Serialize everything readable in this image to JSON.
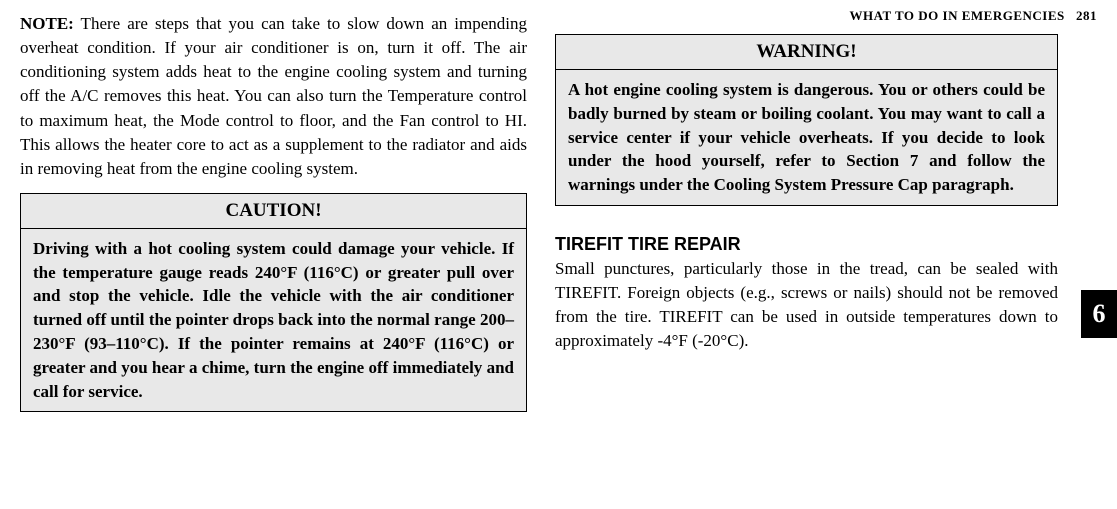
{
  "header": {
    "section_title": "WHAT TO DO IN EMERGENCIES",
    "page_number": "281"
  },
  "side_tab": "6",
  "left": {
    "note_label": "NOTE:",
    "note_text": "   There are steps that you can take to slow down an impending overheat condition. If your air conditioner is on, turn it off. The air conditioning system adds heat to the engine cooling system and turning off the A/C removes this heat. You can also turn the Temperature control to maximum heat, the Mode control to floor, and the Fan control to HI. This allows the heater core to act as a supplement to the radiator and aids in removing heat from the engine cooling system.",
    "caution": {
      "title": "CAUTION!",
      "body": "Driving with a hot cooling system could damage your vehicle. If the temperature gauge reads 240°F (116°C) or greater pull over and stop the vehicle. Idle the vehicle with the air conditioner turned off until the pointer drops back into the normal range 200–230°F (93–110°C). If the pointer remains at 240°F (116°C) or greater and you hear a chime, turn the engine off immediately and call for service."
    }
  },
  "right": {
    "warning": {
      "title": "WARNING!",
      "body": "A hot engine cooling system is dangerous. You or others could be badly burned by steam or boiling coolant. You may want to call a service center if your vehicle overheats. If you decide to look under the hood yourself, refer to Section 7 and follow the warnings under the Cooling System Pressure Cap paragraph."
    },
    "section": {
      "heading": "TIREFIT TIRE REPAIR",
      "body": "Small punctures, particularly those in the tread, can be sealed with TIREFIT. Foreign objects (e.g., screws or nails) should not be removed from the tire. TIREFIT can be used in outside temperatures down to approximately -4°F (-20°C)."
    }
  }
}
